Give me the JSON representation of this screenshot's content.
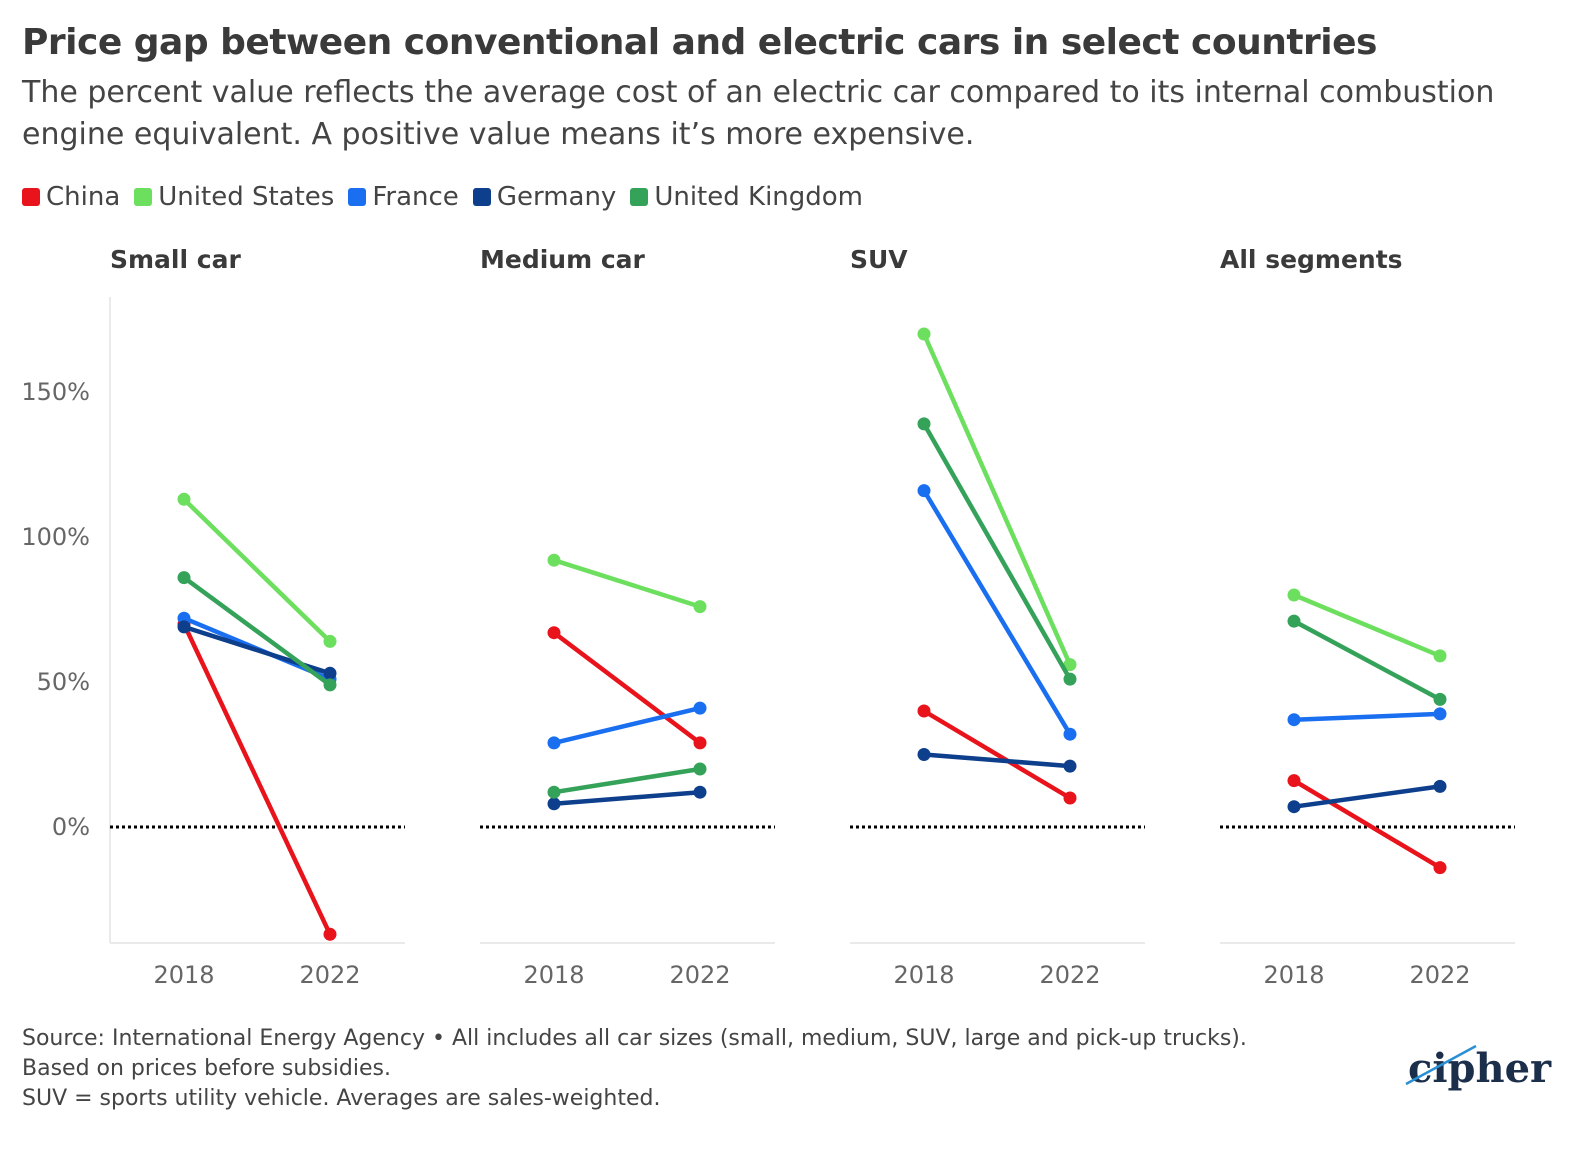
{
  "header": {
    "title": "Price gap between conventional and electric cars in select countries",
    "subtitle": "The percent value reflects the average cost of an electric car compared to its internal combustion engine equivalent. A positive value means it’s more expensive."
  },
  "legend": [
    {
      "label": "China",
      "color": "#e8131b"
    },
    {
      "label": "United States",
      "color": "#6ddf5e"
    },
    {
      "label": "France",
      "color": "#1a6ff0"
    },
    {
      "label": "Germany",
      "color": "#0e3f8c"
    },
    {
      "label": "United Kingdom",
      "color": "#35a25a"
    }
  ],
  "chart_data": {
    "type": "line",
    "x": [
      "2018",
      "2022"
    ],
    "y_ticks": [
      "150%",
      "100%",
      "50%",
      "0%"
    ],
    "ylim": [
      -40,
      180
    ],
    "reference_line": 0,
    "panels": [
      {
        "title": "Small car",
        "series": [
          {
            "name": "China",
            "values": [
              70,
              -37
            ]
          },
          {
            "name": "United States",
            "values": [
              113,
              64
            ]
          },
          {
            "name": "France",
            "values": [
              72,
              51
            ]
          },
          {
            "name": "Germany",
            "values": [
              69,
              53
            ]
          },
          {
            "name": "United Kingdom",
            "values": [
              86,
              49
            ]
          }
        ]
      },
      {
        "title": "Medium car",
        "series": [
          {
            "name": "China",
            "values": [
              67,
              29
            ]
          },
          {
            "name": "United States",
            "values": [
              92,
              76
            ]
          },
          {
            "name": "France",
            "values": [
              29,
              41
            ]
          },
          {
            "name": "Germany",
            "values": [
              8,
              12
            ]
          },
          {
            "name": "United Kingdom",
            "values": [
              12,
              20
            ]
          }
        ]
      },
      {
        "title": "SUV",
        "series": [
          {
            "name": "China",
            "values": [
              40,
              10
            ]
          },
          {
            "name": "United States",
            "values": [
              170,
              56
            ]
          },
          {
            "name": "France",
            "values": [
              116,
              32
            ]
          },
          {
            "name": "Germany",
            "values": [
              25,
              21
            ]
          },
          {
            "name": "United Kingdom",
            "values": [
              139,
              51
            ]
          }
        ]
      },
      {
        "title": "All segments",
        "series": [
          {
            "name": "China",
            "values": [
              16,
              -14
            ]
          },
          {
            "name": "United States",
            "values": [
              80,
              59
            ]
          },
          {
            "name": "France",
            "values": [
              37,
              39
            ]
          },
          {
            "name": "Germany",
            "values": [
              7,
              14
            ]
          },
          {
            "name": "United Kingdom",
            "values": [
              71,
              44
            ]
          }
        ]
      }
    ]
  },
  "footer": {
    "line1": "Source: International Energy Agency • All includes all car sizes (small, medium, SUV, large and pick-up trucks).",
    "line2": "Based on prices before subsidies.",
    "line3": "SUV = sports utility vehicle. Averages are sales-weighted."
  },
  "logo": {
    "text": "cipher"
  }
}
